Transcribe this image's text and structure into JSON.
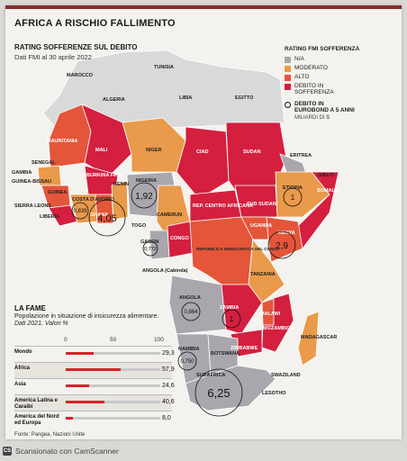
{
  "title": "AFRICA A RISCHIO FALLIMENTO",
  "subtitle": "RATING SOFFERENZE SUL DEBITO",
  "date": "Dati FMI al 30 aprile 2022",
  "colors": {
    "na": "#a9a6ad",
    "moderato": "#e99a4a",
    "alto": "#e4553a",
    "debito": "#d41f3f",
    "north": "#d9d9d9",
    "accent": "#d6232a"
  },
  "legend": {
    "title": "RATING FMI SOFFERENZA",
    "items": [
      {
        "label": "N/A",
        "color": "#a9a6ad"
      },
      {
        "label": "MODERATO",
        "color": "#e99a4a"
      },
      {
        "label": "ALTO",
        "color": "#e4553a"
      },
      {
        "label": "DEBITO IN SOFFERENZA",
        "color": "#d41f3f"
      }
    ],
    "bond_label": "DEBITO IN EUROBOND A 5 ANNI",
    "bond_unit": "MILIARDI DI $"
  },
  "countries": {
    "marocco": "MAROCCO",
    "tunisia": "TUNISIA",
    "algeria": "ALGERIA",
    "libia": "LIBIA",
    "egitto": "EGITTO",
    "mauritania": "MAURITANIA",
    "mali": "MALI",
    "niger": "NIGER",
    "ciad": "CIAD",
    "sudan": "SUDAN",
    "eritrea": "ERITREA",
    "senegal": "SENEGAL",
    "gambia": "GAMBIA",
    "guinea_bissau": "GUINEA-BISSAU",
    "guinea": "GUINEA",
    "sierra_leone": "SIERRA LEONE",
    "liberia": "LIBERIA",
    "costa_davorio": "COSTA D'AVORIO",
    "burkina_faso": "BURKINA FASO",
    "ghana": "GHANA",
    "togo": "TOGO",
    "benin": "BENIN",
    "nigeria": "NIGERIA",
    "camerun": "CAMERUN",
    "rca": "REP. CENTRO AFRICANA",
    "sud_sudan": "SUD SUDAN",
    "etiopia": "ETIOPIA",
    "gibuti": "GIBUTI",
    "somalia": "SOMALIA",
    "uganda": "UGANDA",
    "kenya": "KENYA",
    "gabon": "GABON",
    "congo": "CONGO",
    "rdc": "REPUBBLICA DEMOCRATICA DEL CONGO",
    "tanzania": "TANZANIA",
    "angola": "ANGOLA (Cabinda)",
    "angola_main": "ANGOLA",
    "zambia": "ZAMBIA",
    "malawi": "MALAWI",
    "mozambico": "MOZAMBICO",
    "zimbabwe": "ZIMBABWE",
    "madagascar": "MADAGASCAR",
    "namibia": "NAMIBIA",
    "botswana": "BOTSWANA",
    "sudafrica": "SUDAFRICA",
    "swaziland": "SWAZILAND",
    "lesotho": "LESOTHO"
  },
  "bonds": {
    "costa_davorio": "0,839",
    "ghana": "4,05",
    "nigeria": "1,92",
    "gabon": "0,772",
    "etiopia": "1",
    "kenya": "2,9",
    "angola": "0,864",
    "zambia": "1",
    "namibia": "0,750",
    "sudafrica": "6,25"
  },
  "fame": {
    "title": "LA FAME",
    "desc": "Popolazione in situazione di insicurezza alimentare.",
    "desc_italic": "Dati 2021. Valori %",
    "axis": [
      "0",
      "50",
      "100"
    ],
    "rows": [
      {
        "label": "Mondo",
        "value": 29.3,
        "value_text": "29,3"
      },
      {
        "label": "Africa",
        "value": 57.9,
        "value_text": "57,9"
      },
      {
        "label": "Asia",
        "value": 24.6,
        "value_text": "24,6"
      },
      {
        "label": "America Latina e Caraibi",
        "value": 40.6,
        "value_text": "40,6"
      },
      {
        "label": "America del Nord ed Europa",
        "value": 8.0,
        "value_text": "8,0"
      }
    ]
  },
  "source": "Fonte: Pangea, Nazioni Unite",
  "scanner": {
    "badge": "CS",
    "text": "Scansionato con CamScanner"
  }
}
